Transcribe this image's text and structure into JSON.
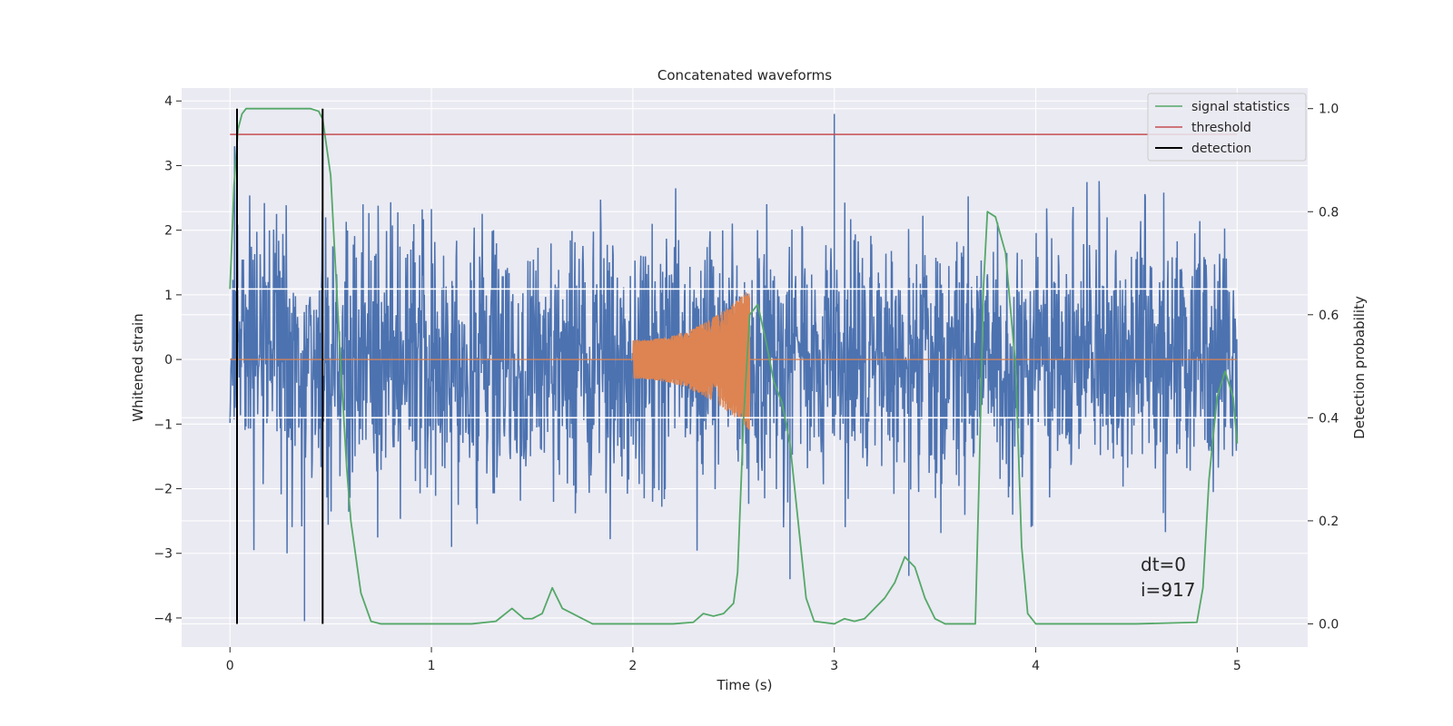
{
  "chart_data": {
    "type": "line",
    "title": "Concatenated waveforms",
    "xlabel": "Time (s)",
    "ylabel": "Whitened strain",
    "y2label": "Detection probability",
    "xlim": [
      -0.24,
      5.35
    ],
    "ylim": [
      -4.45,
      4.2
    ],
    "y2lim": [
      -0.045,
      1.04
    ],
    "grid": true,
    "legend_position": "top-right",
    "xticks": [
      0,
      1,
      2,
      3,
      4,
      5
    ],
    "yticks": [
      -4,
      -3,
      -2,
      -1,
      0,
      1,
      2,
      3,
      4
    ],
    "y2ticks": [
      0.0,
      0.2,
      0.4,
      0.6,
      0.8,
      1.0
    ],
    "xtick_labels": [
      "0",
      "1",
      "2",
      "3",
      "4",
      "5"
    ],
    "ytick_labels": [
      "−4",
      "−3",
      "−2",
      "−1",
      "0",
      "1",
      "2",
      "3",
      "4"
    ],
    "y2tick_labels": [
      "0.0",
      "0.2",
      "0.4",
      "0.6",
      "0.8",
      "1.0"
    ],
    "colors": {
      "noise": "#4c72b0",
      "waveform": "#dd8452",
      "signal_statistics": "#55a868",
      "threshold": "#c44e52",
      "detection": "#000000",
      "background": "#eaeaf2",
      "grid": "#ffffff"
    },
    "noise": {
      "x_range": [
        0,
        5
      ],
      "typical_amplitude": 1.0,
      "spikes": [
        {
          "x": 0.37,
          "y": -4.05
        },
        {
          "x": 3.0,
          "y": 3.8
        },
        {
          "x": 2.78,
          "y": -3.4
        },
        {
          "x": 3.37,
          "y": -3.35
        },
        {
          "x": 1.1,
          "y": -2.9
        }
      ]
    },
    "waveform": {
      "x_start": 2.0,
      "x_end": 2.58,
      "amplitude_start": 0.3,
      "amplitude_end": 1.1
    },
    "hlines": [
      {
        "y": 0.65,
        "axis": "y2",
        "x_range": [
          0,
          5
        ],
        "style": "white"
      },
      {
        "y": 0.4,
        "axis": "y2",
        "x_range": [
          0,
          5
        ],
        "style": "white"
      }
    ],
    "series": [
      {
        "name": "signal statistics",
        "axis": "y2",
        "x": [
          0.0,
          0.02,
          0.04,
          0.06,
          0.08,
          0.1,
          0.2,
          0.3,
          0.4,
          0.44,
          0.46,
          0.5,
          0.52,
          0.55,
          0.58,
          0.6,
          0.65,
          0.7,
          0.75,
          0.9,
          1.2,
          1.32,
          1.4,
          1.46,
          1.5,
          1.55,
          1.6,
          1.65,
          1.7,
          1.8,
          1.9,
          2.2,
          2.3,
          2.35,
          2.4,
          2.45,
          2.5,
          2.52,
          2.55,
          2.58,
          2.62,
          2.66,
          2.7,
          2.74,
          2.78,
          2.82,
          2.86,
          2.9,
          3.0,
          3.05,
          3.1,
          3.15,
          3.2,
          3.25,
          3.3,
          3.35,
          3.4,
          3.45,
          3.5,
          3.55,
          3.6,
          3.7,
          3.72,
          3.74,
          3.76,
          3.8,
          3.85,
          3.9,
          3.93,
          3.96,
          4.0,
          4.2,
          4.5,
          4.8,
          4.83,
          4.86,
          4.9,
          4.94,
          4.98,
          5.0
        ],
        "y": [
          0.65,
          0.85,
          0.96,
          0.99,
          1.0,
          1.0,
          1.0,
          1.0,
          1.0,
          0.995,
          0.98,
          0.87,
          0.72,
          0.5,
          0.3,
          0.2,
          0.06,
          0.005,
          0.0,
          0.0,
          0.0,
          0.005,
          0.03,
          0.01,
          0.01,
          0.02,
          0.07,
          0.03,
          0.02,
          0.0,
          0.0,
          0.0,
          0.003,
          0.02,
          0.015,
          0.02,
          0.04,
          0.1,
          0.4,
          0.6,
          0.62,
          0.55,
          0.47,
          0.43,
          0.35,
          0.2,
          0.05,
          0.005,
          0.0,
          0.01,
          0.005,
          0.01,
          0.03,
          0.05,
          0.08,
          0.13,
          0.11,
          0.05,
          0.01,
          0.0,
          0.0,
          0.0,
          0.3,
          0.65,
          0.8,
          0.79,
          0.72,
          0.5,
          0.15,
          0.02,
          0.0,
          0.0,
          0.0,
          0.003,
          0.07,
          0.28,
          0.44,
          0.49,
          0.44,
          0.35
        ]
      },
      {
        "name": "threshold",
        "axis": "y2",
        "x": [
          0,
          5
        ],
        "y": [
          0.95,
          0.95
        ]
      },
      {
        "name": "detection",
        "axis": "y2",
        "vlines": [
          0.035,
          0.46
        ],
        "y": [
          0.0,
          1.0
        ]
      }
    ],
    "annotations": [
      "dt=0",
      "i=917"
    ]
  }
}
